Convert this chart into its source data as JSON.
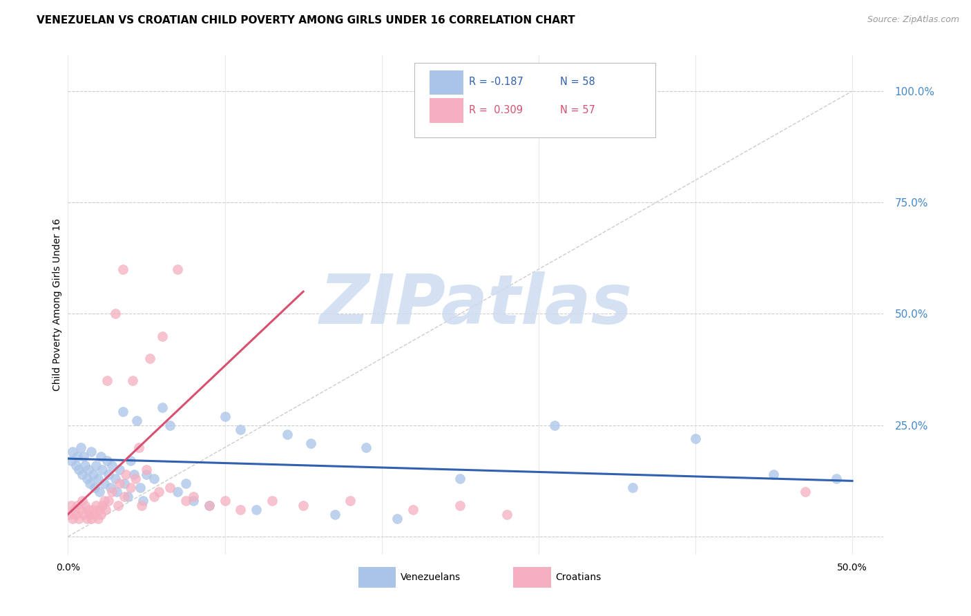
{
  "title": "VENEZUELAN VS CROATIAN CHILD POVERTY AMONG GIRLS UNDER 16 CORRELATION CHART",
  "source": "Source: ZipAtlas.com",
  "ylabel": "Child Poverty Among Girls Under 16",
  "xlim": [
    0.0,
    0.52
  ],
  "ylim": [
    -0.04,
    1.08
  ],
  "ytick_vals": [
    0.0,
    0.25,
    0.5,
    0.75,
    1.0
  ],
  "ytick_labels": [
    "",
    "25.0%",
    "50.0%",
    "75.0%",
    "100.0%"
  ],
  "legend_r_blue": "R = -0.187",
  "legend_n_blue": "N = 58",
  "legend_r_pink": "R =  0.309",
  "legend_n_pink": "N = 57",
  "blue_color": "#aac4e8",
  "pink_color": "#f5afc0",
  "blue_line_color": "#3060b0",
  "pink_line_color": "#d85070",
  "diag_color": "#c8c8c8",
  "watermark_color": "#cddcf0",
  "venezuelan_x": [
    0.002,
    0.003,
    0.005,
    0.006,
    0.007,
    0.008,
    0.009,
    0.01,
    0.011,
    0.012,
    0.013,
    0.014,
    0.015,
    0.016,
    0.017,
    0.018,
    0.019,
    0.02,
    0.021,
    0.022,
    0.023,
    0.025,
    0.026,
    0.027,
    0.028,
    0.03,
    0.031,
    0.033,
    0.035,
    0.036,
    0.038,
    0.04,
    0.042,
    0.044,
    0.046,
    0.048,
    0.05,
    0.055,
    0.06,
    0.065,
    0.07,
    0.075,
    0.08,
    0.09,
    0.1,
    0.11,
    0.12,
    0.14,
    0.155,
    0.17,
    0.19,
    0.21,
    0.25,
    0.31,
    0.36,
    0.4,
    0.45,
    0.49
  ],
  "venezuelan_y": [
    0.17,
    0.19,
    0.16,
    0.18,
    0.15,
    0.2,
    0.14,
    0.18,
    0.16,
    0.13,
    0.15,
    0.12,
    0.19,
    0.14,
    0.11,
    0.16,
    0.13,
    0.1,
    0.18,
    0.15,
    0.12,
    0.17,
    0.14,
    0.11,
    0.16,
    0.13,
    0.1,
    0.15,
    0.28,
    0.12,
    0.09,
    0.17,
    0.14,
    0.26,
    0.11,
    0.08,
    0.14,
    0.13,
    0.29,
    0.25,
    0.1,
    0.12,
    0.08,
    0.07,
    0.27,
    0.24,
    0.06,
    0.23,
    0.21,
    0.05,
    0.2,
    0.04,
    0.13,
    0.25,
    0.11,
    0.22,
    0.14,
    0.13
  ],
  "croatian_x": [
    0.001,
    0.002,
    0.003,
    0.004,
    0.005,
    0.006,
    0.007,
    0.008,
    0.009,
    0.01,
    0.011,
    0.012,
    0.013,
    0.014,
    0.015,
    0.016,
    0.017,
    0.018,
    0.019,
    0.02,
    0.021,
    0.022,
    0.023,
    0.024,
    0.025,
    0.026,
    0.028,
    0.03,
    0.032,
    0.033,
    0.035,
    0.036,
    0.037,
    0.04,
    0.041,
    0.043,
    0.045,
    0.047,
    0.05,
    0.052,
    0.055,
    0.058,
    0.06,
    0.065,
    0.07,
    0.075,
    0.08,
    0.09,
    0.1,
    0.11,
    0.13,
    0.15,
    0.18,
    0.22,
    0.25,
    0.28,
    0.47
  ],
  "croatian_y": [
    0.05,
    0.07,
    0.04,
    0.06,
    0.05,
    0.07,
    0.04,
    0.06,
    0.08,
    0.05,
    0.07,
    0.04,
    0.06,
    0.05,
    0.04,
    0.06,
    0.05,
    0.07,
    0.04,
    0.06,
    0.05,
    0.07,
    0.08,
    0.06,
    0.35,
    0.08,
    0.1,
    0.5,
    0.07,
    0.12,
    0.6,
    0.09,
    0.14,
    0.11,
    0.35,
    0.13,
    0.2,
    0.07,
    0.15,
    0.4,
    0.09,
    0.1,
    0.45,
    0.11,
    0.6,
    0.08,
    0.09,
    0.07,
    0.08,
    0.06,
    0.08,
    0.07,
    0.08,
    0.06,
    0.07,
    0.05,
    0.1
  ],
  "blue_line_x": [
    0.0,
    0.5
  ],
  "blue_line_y": [
    0.175,
    0.125
  ],
  "pink_line_x": [
    0.0,
    0.15
  ],
  "pink_line_y": [
    0.05,
    0.55
  ]
}
